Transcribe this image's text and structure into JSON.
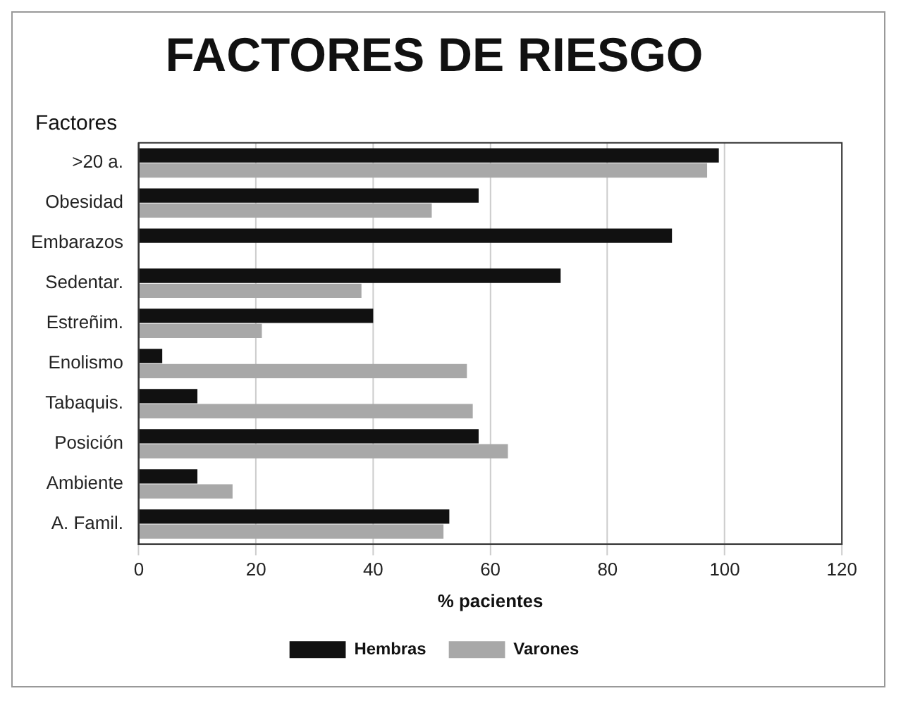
{
  "chart_data": {
    "type": "bar",
    "orientation": "horizontal",
    "title": "FACTORES DE RIESGO",
    "ylabel": "Factores",
    "xlabel": "% pacientes",
    "categories": [
      ">20 a.",
      "Obesidad",
      "Embarazos",
      "Sedentar.",
      "Estreñim.",
      "Enolismo",
      "Tabaquis.",
      "Posición",
      "Ambiente",
      "A. Famil."
    ],
    "series": [
      {
        "name": "Hembras",
        "color": "#111111",
        "values": [
          99,
          58,
          91,
          72,
          40,
          4,
          10,
          58,
          10,
          53
        ]
      },
      {
        "name": "Varones",
        "color": "#a8a8a8",
        "values": [
          97,
          50,
          null,
          38,
          21,
          56,
          57,
          63,
          16,
          52
        ]
      }
    ],
    "xlim": [
      0,
      120
    ],
    "xticks": [
      0,
      20,
      40,
      60,
      80,
      100,
      120
    ],
    "grid": "x",
    "legend": "bottom"
  }
}
